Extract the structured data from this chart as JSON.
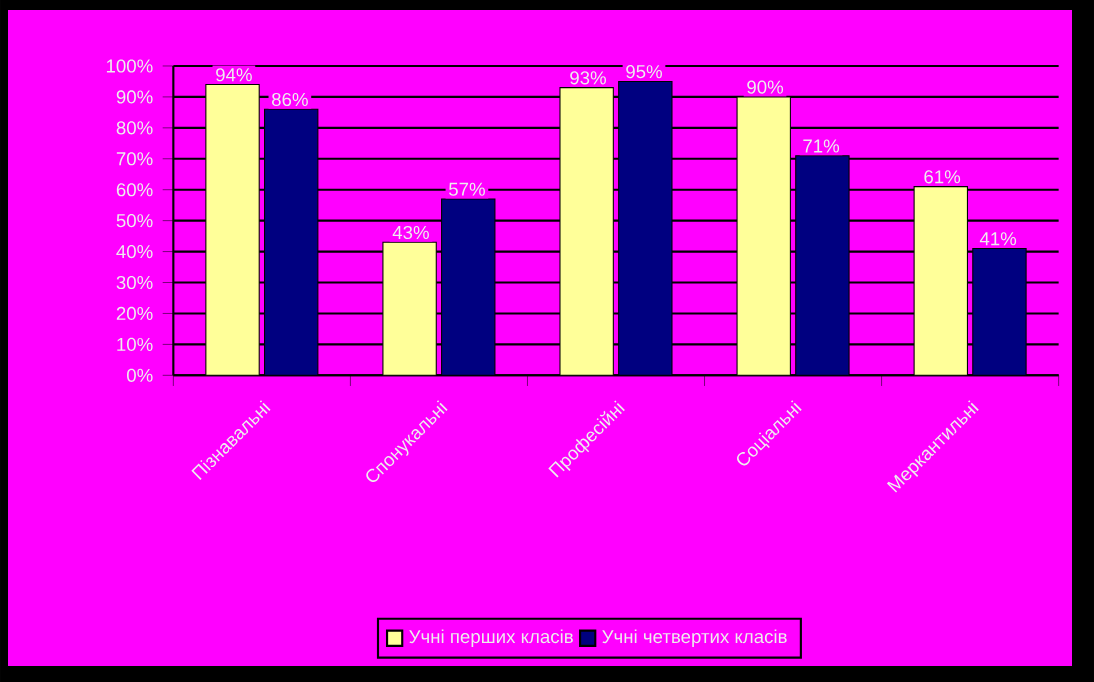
{
  "chart_data": {
    "type": "bar",
    "categories": [
      "Пізнавальні",
      "Спонукальні",
      "Професійні",
      "Соціальні",
      "Меркантильні"
    ],
    "series": [
      {
        "name": "Учні перших класів",
        "color": "#ffff99",
        "values": [
          94,
          43,
          93,
          90,
          61
        ],
        "value_labels": [
          "94%",
          "43%",
          "93%",
          "90%",
          "61%"
        ]
      },
      {
        "name": "Учні четвертих класів",
        "color": "#000080",
        "values": [
          86,
          57,
          95,
          71,
          41
        ],
        "value_labels": [
          "86%",
          "57%",
          "95%",
          "71%",
          "41%"
        ]
      }
    ],
    "ylim": [
      0,
      100
    ],
    "yticks": [
      {
        "value": 0,
        "label": "0%"
      },
      {
        "value": 10,
        "label": "10%"
      },
      {
        "value": 20,
        "label": "20%"
      },
      {
        "value": 30,
        "label": "30%"
      },
      {
        "value": 40,
        "label": "40%"
      },
      {
        "value": 50,
        "label": "50%"
      },
      {
        "value": 60,
        "label": "60%"
      },
      {
        "value": 70,
        "label": "70%"
      },
      {
        "value": 80,
        "label": "80%"
      },
      {
        "value": 90,
        "label": "90%"
      },
      {
        "value": 100,
        "label": "100%"
      }
    ],
    "grid": "y",
    "legend": "bottom"
  }
}
